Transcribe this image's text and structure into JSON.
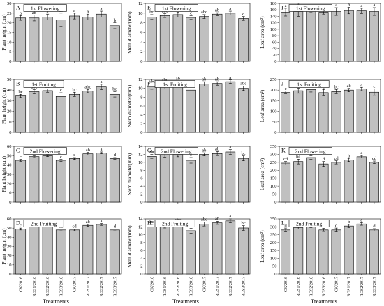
{
  "treatments": [
    "CK/2016",
    "RGS1/2016",
    "RGS2/2016",
    "RGS3/2016",
    "CK/2017",
    "RGS1/2017",
    "RGS2/2017",
    "RGS3/2017"
  ],
  "xlabel": "Treatments",
  "colors": {
    "bar": "#c0c0c0",
    "stroke": "#000000"
  },
  "chart_data": [
    {
      "panel": "A",
      "type": "bar",
      "title": "1st Flowering",
      "ylabel": "Plant height (cm)",
      "ylim": [
        0,
        30
      ],
      "yticks": [
        0,
        5,
        10,
        15,
        20,
        25,
        30
      ],
      "values": [
        22.5,
        22.5,
        23,
        21.5,
        23.5,
        23,
        24.5,
        18.5
      ],
      "errors": [
        1.2,
        1.5,
        1.5,
        3.5,
        1.5,
        1.5,
        1.5,
        1.5
      ],
      "letters": [
        "a",
        "ab",
        "a",
        "ab",
        "a",
        "a",
        "a",
        "b"
      ]
    },
    {
      "panel": "B",
      "type": "bar",
      "title": "1st Fruiting",
      "ylabel": "Plant height (cm)",
      "ylim": [
        0,
        50
      ],
      "yticks": [
        0,
        10,
        20,
        30,
        40,
        50
      ],
      "values": [
        34.5,
        38.5,
        39.5,
        34,
        36,
        39,
        43,
        36
      ],
      "errors": [
        1.5,
        2,
        1.5,
        3.5,
        2,
        1.5,
        2.5,
        2.5
      ],
      "letters": [
        "bc",
        "abc",
        "ab",
        "c",
        "bc",
        "abc",
        "a",
        "bc"
      ]
    },
    {
      "panel": "C",
      "type": "bar",
      "title": "2nd Flowering",
      "ylabel": "Plant height (cm)",
      "ylim": [
        0,
        60
      ],
      "yticks": [
        0,
        10,
        20,
        30,
        40,
        50,
        60
      ],
      "values": [
        45,
        49,
        50,
        45,
        47,
        52,
        53,
        47
      ],
      "errors": [
        1,
        1,
        1,
        1,
        1,
        1.5,
        1,
        1
      ],
      "letters": [
        "c",
        "b",
        "b",
        "c",
        "c",
        "ab",
        "a",
        "d"
      ]
    },
    {
      "panel": "D",
      "type": "bar",
      "title": "2nd Fruiting",
      "ylabel": "Plant height (cm)",
      "ylim": [
        0,
        60
      ],
      "yticks": [
        0,
        10,
        20,
        30,
        40,
        50,
        60
      ],
      "values": [
        49,
        53,
        54,
        48,
        48,
        53,
        54,
        48
      ],
      "errors": [
        1,
        1,
        1,
        1,
        1,
        1,
        1,
        1
      ],
      "letters": [
        "c",
        "ab",
        "a",
        "cd",
        "cd",
        "ab",
        "a",
        "d"
      ]
    },
    {
      "panel": "E",
      "type": "bar",
      "title": "1st Flowering",
      "ylabel": "Stem diameter(mm)",
      "ylim": [
        0,
        12
      ],
      "yticks": [
        0,
        2,
        4,
        6,
        8,
        10,
        12
      ],
      "values": [
        9.2,
        9.5,
        9.7,
        9.1,
        9.3,
        9.8,
        10,
        8.9
      ],
      "errors": [
        0.5,
        0.4,
        0.5,
        0.4,
        0.4,
        0.3,
        0.4,
        0.4
      ],
      "letters": [
        "bc",
        "abc",
        "ab",
        "c",
        "abc",
        "ab",
        "a",
        "c"
      ]
    },
    {
      "panel": "F",
      "type": "bar",
      "title": "1st Fruiting",
      "ylabel": "Stem diameter(mm)",
      "ylim": [
        0,
        12
      ],
      "yticks": [
        0,
        2,
        4,
        6,
        8,
        10,
        12
      ],
      "values": [
        10.4,
        10.6,
        11,
        9.6,
        11,
        11.1,
        11.5,
        10
      ],
      "errors": [
        0.6,
        0.7,
        0.6,
        0.7,
        0.5,
        0.4,
        0.4,
        0.5
      ],
      "letters": [
        "abc",
        "abc",
        "ab",
        "c",
        "ab",
        "ab",
        "a",
        "abc"
      ]
    },
    {
      "panel": "G",
      "type": "bar",
      "title": "2nd Flowering",
      "ylabel": "Stem diameter(mm)",
      "ylim": [
        0,
        14
      ],
      "yticks": [
        0,
        2,
        4,
        6,
        8,
        10,
        12,
        14
      ],
      "values": [
        11.5,
        11.8,
        12,
        10.5,
        12,
        12.2,
        12.6,
        11
      ],
      "errors": [
        0.5,
        0.5,
        0.6,
        0.7,
        0.4,
        0.5,
        0.6,
        0.6
      ],
      "letters": [
        "abc",
        "abc",
        "ab",
        "e",
        "ab",
        "ab",
        "a",
        "bc"
      ]
    },
    {
      "panel": "H",
      "type": "bar",
      "title": "2nd Fruiting",
      "ylabel": "Stem diameter(mm)",
      "ylim": [
        0,
        14
      ],
      "yticks": [
        0,
        2,
        4,
        6,
        8,
        10,
        12,
        14
      ],
      "values": [
        12,
        12.3,
        12.6,
        11,
        12.7,
        13,
        13.5,
        11.7
      ],
      "errors": [
        0.6,
        0.6,
        0.5,
        0.6,
        0.5,
        0.4,
        0.5,
        0.6
      ],
      "letters": [
        "bc",
        "bc",
        "abc",
        "c",
        "abc",
        "ab",
        "a",
        "bc"
      ]
    },
    {
      "panel": "I",
      "type": "bar",
      "title": "1st Flowering",
      "ylabel": "Leaf area (cm²)",
      "ylim": [
        0,
        180
      ],
      "yticks": [
        0,
        20,
        40,
        60,
        80,
        100,
        120,
        140,
        160,
        180
      ],
      "values": [
        153,
        155,
        157,
        153,
        155,
        158,
        157,
        155
      ],
      "errors": [
        12,
        15,
        5,
        6,
        12,
        10,
        8,
        12
      ],
      "letters": [
        "a",
        "a",
        "a",
        "a",
        "a",
        "a",
        "a",
        "a"
      ]
    },
    {
      "panel": "J",
      "type": "bar",
      "title": "1st Fruiting",
      "ylabel": "Leaf area (cm²)",
      "ylim": [
        0,
        250
      ],
      "yticks": [
        0,
        50,
        100,
        150,
        200,
        250
      ],
      "values": [
        189,
        197,
        203,
        188,
        193,
        200,
        205,
        190
      ],
      "errors": [
        6,
        12,
        12,
        15,
        10,
        8,
        8,
        15
      ],
      "letters": [
        "c",
        "bc",
        "ab",
        "c",
        "bc",
        "ab",
        "a",
        "c"
      ]
    },
    {
      "panel": "K",
      "type": "bar",
      "title": "2nd Flowering",
      "ylabel": "Leaf area (cm²)",
      "ylim": [
        0,
        350
      ],
      "yticks": [
        0,
        50,
        100,
        150,
        200,
        250,
        300,
        350
      ],
      "values": [
        245,
        255,
        280,
        240,
        250,
        265,
        285,
        250
      ],
      "errors": [
        10,
        15,
        10,
        15,
        10,
        10,
        8,
        8
      ],
      "letters": [
        "cd",
        "bc",
        "a",
        "d",
        "cd",
        "b",
        "a",
        "cd"
      ]
    },
    {
      "panel": "L",
      "type": "bar",
      "title": "2nd Fruiting",
      "ylabel": "Leaf area (cm²)",
      "ylim": [
        0,
        350
      ],
      "yticks": [
        0,
        50,
        100,
        150,
        200,
        250,
        300,
        350
      ],
      "values": [
        280,
        295,
        305,
        280,
        280,
        305,
        318,
        280
      ],
      "errors": [
        12,
        10,
        10,
        10,
        12,
        10,
        8,
        8
      ],
      "letters": [
        "d",
        "c",
        "b",
        "d",
        "d",
        "b",
        "a",
        "d"
      ]
    }
  ]
}
